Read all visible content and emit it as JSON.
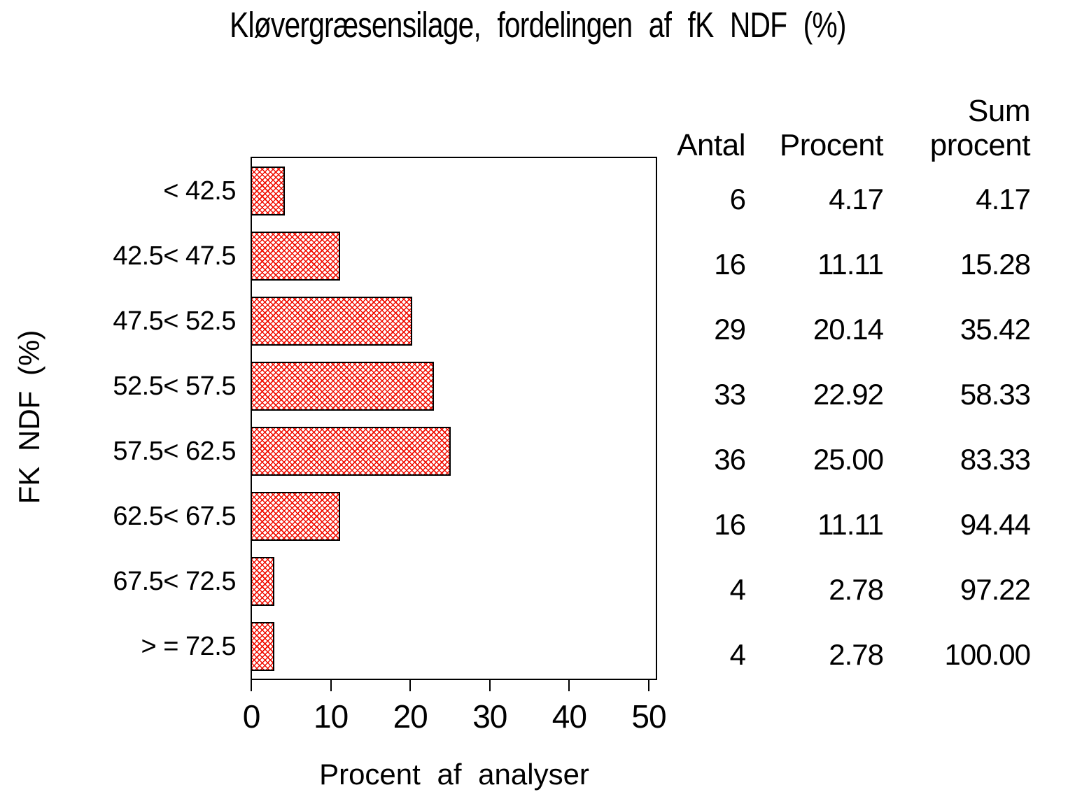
{
  "chart_data": {
    "type": "bar",
    "orientation": "horizontal",
    "title": "Kløvergræsensilage, fordelingen af fK NDF (%)",
    "xlabel": "Procent af analyser",
    "ylabel": "FK NDF (%)",
    "categories": [
      "< 42.5",
      "42.5< 47.5",
      "47.5< 52.5",
      "52.5< 57.5",
      "57.5< 62.5",
      "62.5< 67.5",
      "67.5< 72.5",
      "> = 72.5"
    ],
    "values": [
      4.17,
      11.11,
      20.14,
      22.92,
      25.0,
      11.11,
      2.78,
      2.78
    ],
    "xlim": [
      0,
      51
    ],
    "xticks": [
      0,
      10,
      20,
      30,
      40,
      50
    ],
    "grid": false,
    "bar_style": {
      "fill_pattern": "diagonal-crosshatch",
      "pattern_color": "#f10c00",
      "border_color": "#000000",
      "background": "#ffffff"
    },
    "table": {
      "columns": [
        "Antal",
        "Procent",
        "Sum procent"
      ],
      "header_lines": [
        [
          "Antal"
        ],
        [
          "Procent"
        ],
        [
          "Sum",
          "procent"
        ]
      ],
      "rows": [
        [
          "6",
          "4.17",
          "4.17"
        ],
        [
          "16",
          "11.11",
          "15.28"
        ],
        [
          "29",
          "20.14",
          "35.42"
        ],
        [
          "33",
          "22.92",
          "58.33"
        ],
        [
          "36",
          "25.00",
          "83.33"
        ],
        [
          "16",
          "11.11",
          "94.44"
        ],
        [
          "4",
          "2.78",
          "97.22"
        ],
        [
          "4",
          "2.78",
          "100.00"
        ]
      ]
    }
  }
}
